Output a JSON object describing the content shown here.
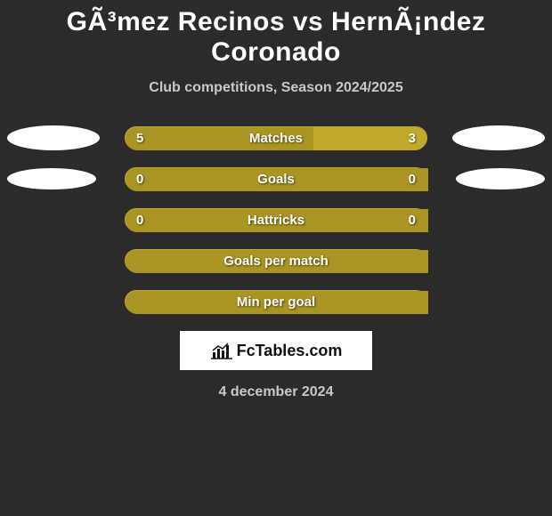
{
  "title": "GÃ³mez Recinos vs HernÃ¡ndez Coronado",
  "subtitle": "Club competitions, Season 2024/2025",
  "date": "4 december 2024",
  "brand": "FcTables.com",
  "colors": {
    "background": "#2b2b2b",
    "bar_base": "#a99424",
    "border": "#c1aa2b",
    "left_fill": "#a99424",
    "right_fill": "#c1aa2b",
    "text": "#ffffff",
    "subtext": "#c9c9c9"
  },
  "placeholders": {
    "row0_visible": true,
    "row1_visible": true,
    "row0": {
      "left_w": 104,
      "left_h": 28,
      "right_w": 104,
      "right_h": 28
    },
    "row1": {
      "left_w": 100,
      "left_h": 24,
      "right_w": 100,
      "right_h": 24
    }
  },
  "stats": [
    {
      "label": "Matches",
      "left_value": "5",
      "right_value": "3",
      "left_pct": 62.5,
      "right_pct": 37.5,
      "show_values": true
    },
    {
      "label": "Goals",
      "left_value": "0",
      "right_value": "0",
      "left_pct": 100,
      "right_pct": 0,
      "show_values": true
    },
    {
      "label": "Hattricks",
      "left_value": "0",
      "right_value": "0",
      "left_pct": 100,
      "right_pct": 0,
      "show_values": true
    },
    {
      "label": "Goals per match",
      "left_value": "",
      "right_value": "",
      "left_pct": 100,
      "right_pct": 0,
      "show_values": false
    },
    {
      "label": "Min per goal",
      "left_value": "",
      "right_value": "",
      "left_pct": 100,
      "right_pct": 0,
      "show_values": false
    }
  ]
}
